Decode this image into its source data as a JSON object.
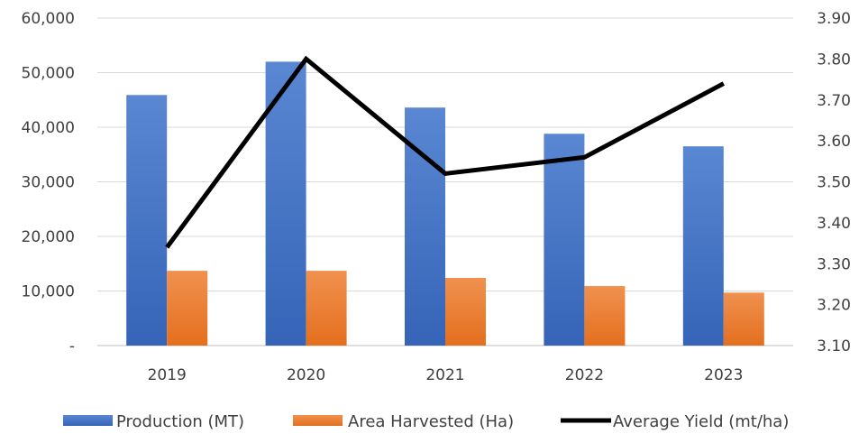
{
  "chart_data": {
    "type": "bar",
    "categories": [
      "2019",
      "2020",
      "2021",
      "2022",
      "2023"
    ],
    "series": [
      {
        "name": "Production (MT)",
        "kind": "bar",
        "axis": "left",
        "color": "#4472C4",
        "values": [
          45900,
          52000,
          43600,
          38800,
          36500
        ]
      },
      {
        "name": "Area Harvested (Ha)",
        "kind": "bar",
        "axis": "left",
        "color": "#ED7D31",
        "values": [
          13700,
          13700,
          12400,
          10900,
          9700
        ]
      },
      {
        "name": "Average Yield (mt/ha)",
        "kind": "line",
        "axis": "right",
        "color": "#000000",
        "values": [
          3.34,
          3.8,
          3.52,
          3.56,
          3.74
        ]
      }
    ],
    "left_axis": {
      "ylim": [
        0,
        60000
      ],
      "tick_labels": [
        "-",
        "10,000",
        "20,000",
        "30,000",
        "40,000",
        "50,000",
        "60,000"
      ]
    },
    "right_axis": {
      "ylim": [
        3.1,
        3.9
      ],
      "tick_labels": [
        "3.10",
        "3.20",
        "3.30",
        "3.40",
        "3.50",
        "3.60",
        "3.70",
        "3.80",
        "3.90"
      ]
    },
    "grid": true,
    "legend_position": "bottom"
  }
}
